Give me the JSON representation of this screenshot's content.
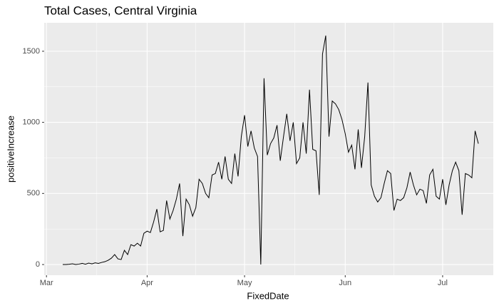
{
  "chart_data": {
    "type": "line",
    "title": "Total Cases, Central Virginia",
    "x_label": "FixedDate",
    "y_label": "positiveIncrease",
    "x": [
      5,
      6,
      7,
      8,
      9,
      10,
      11,
      12,
      13,
      14,
      15,
      16,
      17,
      18,
      19,
      20,
      21,
      22,
      23,
      24,
      25,
      26,
      27,
      28,
      29,
      30,
      31,
      32,
      33,
      34,
      35,
      36,
      37,
      38,
      39,
      40,
      41,
      42,
      43,
      44,
      45,
      46,
      47,
      48,
      49,
      50,
      51,
      52,
      53,
      54,
      55,
      56,
      57,
      58,
      59,
      60,
      61,
      62,
      63,
      64,
      65,
      66,
      67,
      68,
      69,
      70,
      71,
      72,
      73,
      74,
      75,
      76,
      77,
      78,
      79,
      80,
      81,
      82,
      83,
      84,
      85,
      86,
      87,
      88,
      89,
      90,
      91,
      92,
      93,
      94,
      95,
      96,
      97,
      98,
      99,
      100,
      101,
      102,
      103,
      104,
      105,
      106,
      107,
      108,
      109,
      110,
      111,
      112,
      113,
      114,
      115,
      116,
      117,
      118,
      119,
      120,
      121,
      122,
      123,
      124,
      125,
      126,
      127,
      128,
      129,
      130,
      131,
      132,
      133
    ],
    "series": [
      {
        "name": "positiveIncrease",
        "color": "#000000",
        "values": [
          0,
          0,
          2,
          5,
          0,
          3,
          8,
          2,
          10,
          5,
          12,
          8,
          15,
          20,
          30,
          45,
          70,
          40,
          35,
          100,
          70,
          140,
          130,
          150,
          130,
          220,
          235,
          225,
          300,
          390,
          230,
          240,
          450,
          320,
          380,
          460,
          570,
          200,
          460,
          420,
          340,
          400,
          600,
          570,
          500,
          470,
          630,
          640,
          720,
          600,
          760,
          600,
          570,
          780,
          620,
          900,
          1050,
          830,
          940,
          820,
          760,
          0,
          1310,
          770,
          850,
          890,
          980,
          730,
          900,
          1060,
          870,
          1000,
          710,
          750,
          1000,
          780,
          1230,
          810,
          800,
          490,
          1480,
          1610,
          900,
          1150,
          1130,
          1090,
          1020,
          920,
          790,
          840,
          670,
          950,
          680,
          900,
          1280,
          560,
          480,
          440,
          470,
          570,
          660,
          640,
          380,
          460,
          450,
          470,
          540,
          650,
          560,
          490,
          530,
          520,
          430,
          630,
          670,
          480,
          460,
          600,
          420,
          560,
          660,
          720,
          660,
          350,
          640,
          630,
          610,
          940,
          850
        ]
      }
    ],
    "xlim": [
      -0.7,
      137.6
    ],
    "xticks": [
      {
        "value": 0,
        "label": "Mar"
      },
      {
        "value": 31,
        "label": "Apr"
      },
      {
        "value": 61,
        "label": "May"
      },
      {
        "value": 92,
        "label": "Jun"
      },
      {
        "value": 122,
        "label": "Jul"
      }
    ],
    "ylim": [
      -75,
      1700
    ],
    "yticks": [
      0,
      500,
      1000,
      1500
    ],
    "grid": true
  }
}
